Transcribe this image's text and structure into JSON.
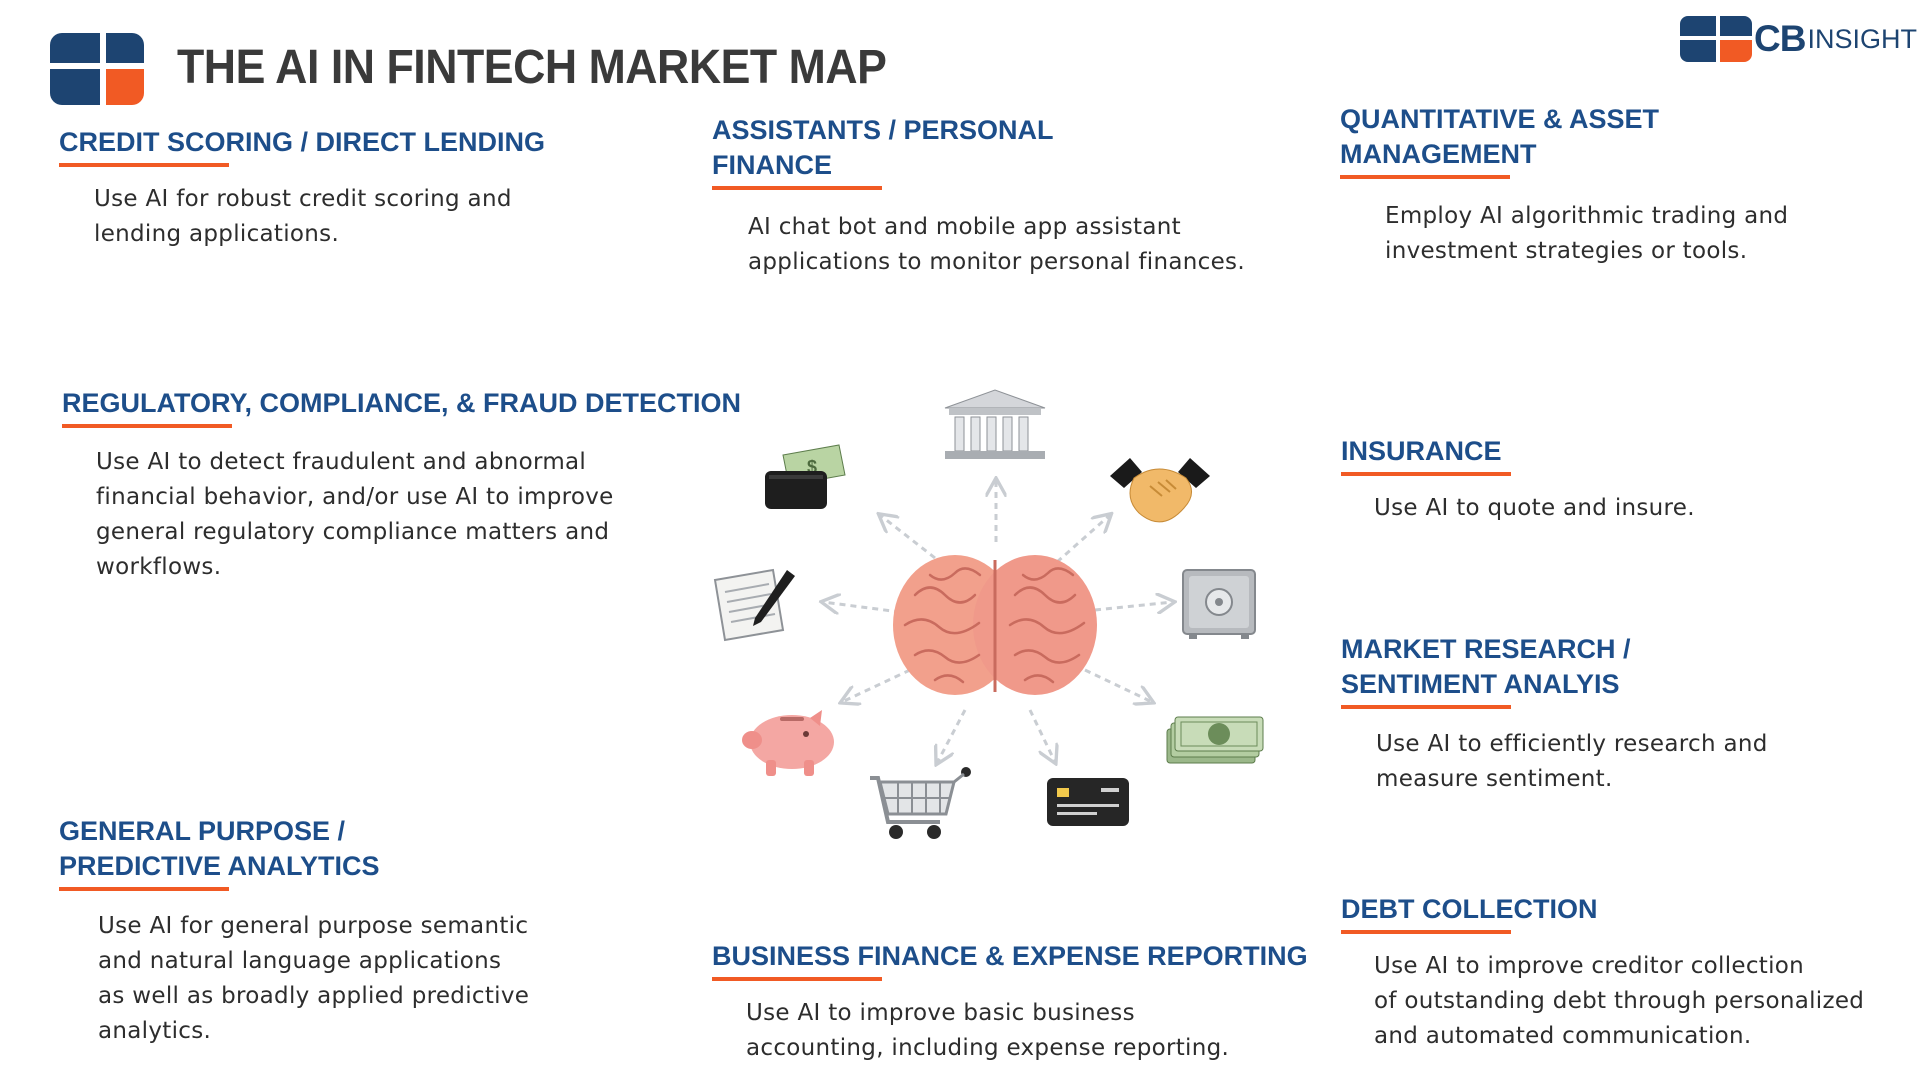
{
  "header": {
    "title": "THE AI IN FINTECH MARKET MAP",
    "brand_cb": "CB",
    "brand_insights": "INSIGHTS"
  },
  "sections": {
    "credit_scoring": {
      "title": "CREDIT SCORING / DIRECT LENDING",
      "desc_lines": [
        "Use AI for robust credit scoring and",
        "lending applications."
      ]
    },
    "assistants": {
      "title_lines": [
        "ASSISTANTS / PERSONAL",
        "FINANCE"
      ],
      "desc_lines": [
        "AI chat bot and mobile app assistant",
        "applications to monitor personal finances."
      ]
    },
    "quantitative": {
      "title_lines": [
        "QUANTITATIVE & ASSET",
        "MANAGEMENT"
      ],
      "desc_lines": [
        "Employ AI algorithmic trading and",
        "investment strategies or tools."
      ]
    },
    "regulatory": {
      "title": "REGULATORY, COMPLIANCE, & FRAUD DETECTION",
      "desc_lines": [
        "Use AI to detect fraudulent and abnormal",
        "financial behavior, and/or use AI to improve",
        "general regulatory compliance matters and",
        "workflows."
      ]
    },
    "insurance": {
      "title": "INSURANCE",
      "desc_lines": [
        "Use AI to quote and insure."
      ]
    },
    "market_research": {
      "title_lines": [
        "MARKET RESEARCH /",
        "SENTIMENT ANALYIS"
      ],
      "desc_lines": [
        "Use AI to efficiently research and",
        "measure sentiment."
      ]
    },
    "general_purpose": {
      "title_lines": [
        "GENERAL PURPOSE /",
        "PREDICTIVE ANALYTICS"
      ],
      "desc_lines": [
        "Use AI for general purpose semantic",
        "and natural language applications",
        "as well as broadly applied predictive",
        "analytics."
      ]
    },
    "business_finance": {
      "title": "BUSINESS FINANCE & EXPENSE REPORTING",
      "desc_lines": [
        "Use AI to improve basic business",
        "accounting, including expense reporting."
      ]
    },
    "debt_collection": {
      "title": "DEBT COLLECTION",
      "desc_lines": [
        "Use AI to improve creditor collection",
        "of outstanding debt through personalized",
        "and automated communication."
      ]
    }
  },
  "hub": {
    "center_icon": "brain-icon",
    "icons": [
      "bank-icon",
      "handshake-icon",
      "safe-icon",
      "cash-stack-icon",
      "credit-card-icon",
      "shopping-cart-icon",
      "piggy-bank-icon",
      "document-pen-icon",
      "wallet-cash-icon"
    ],
    "colors": {
      "arrow": "#c9cdd2",
      "brain": "#f2a08c",
      "title": "#1d4e8a",
      "accent": "#f15a24",
      "logo_blue": "#1d4471"
    }
  }
}
